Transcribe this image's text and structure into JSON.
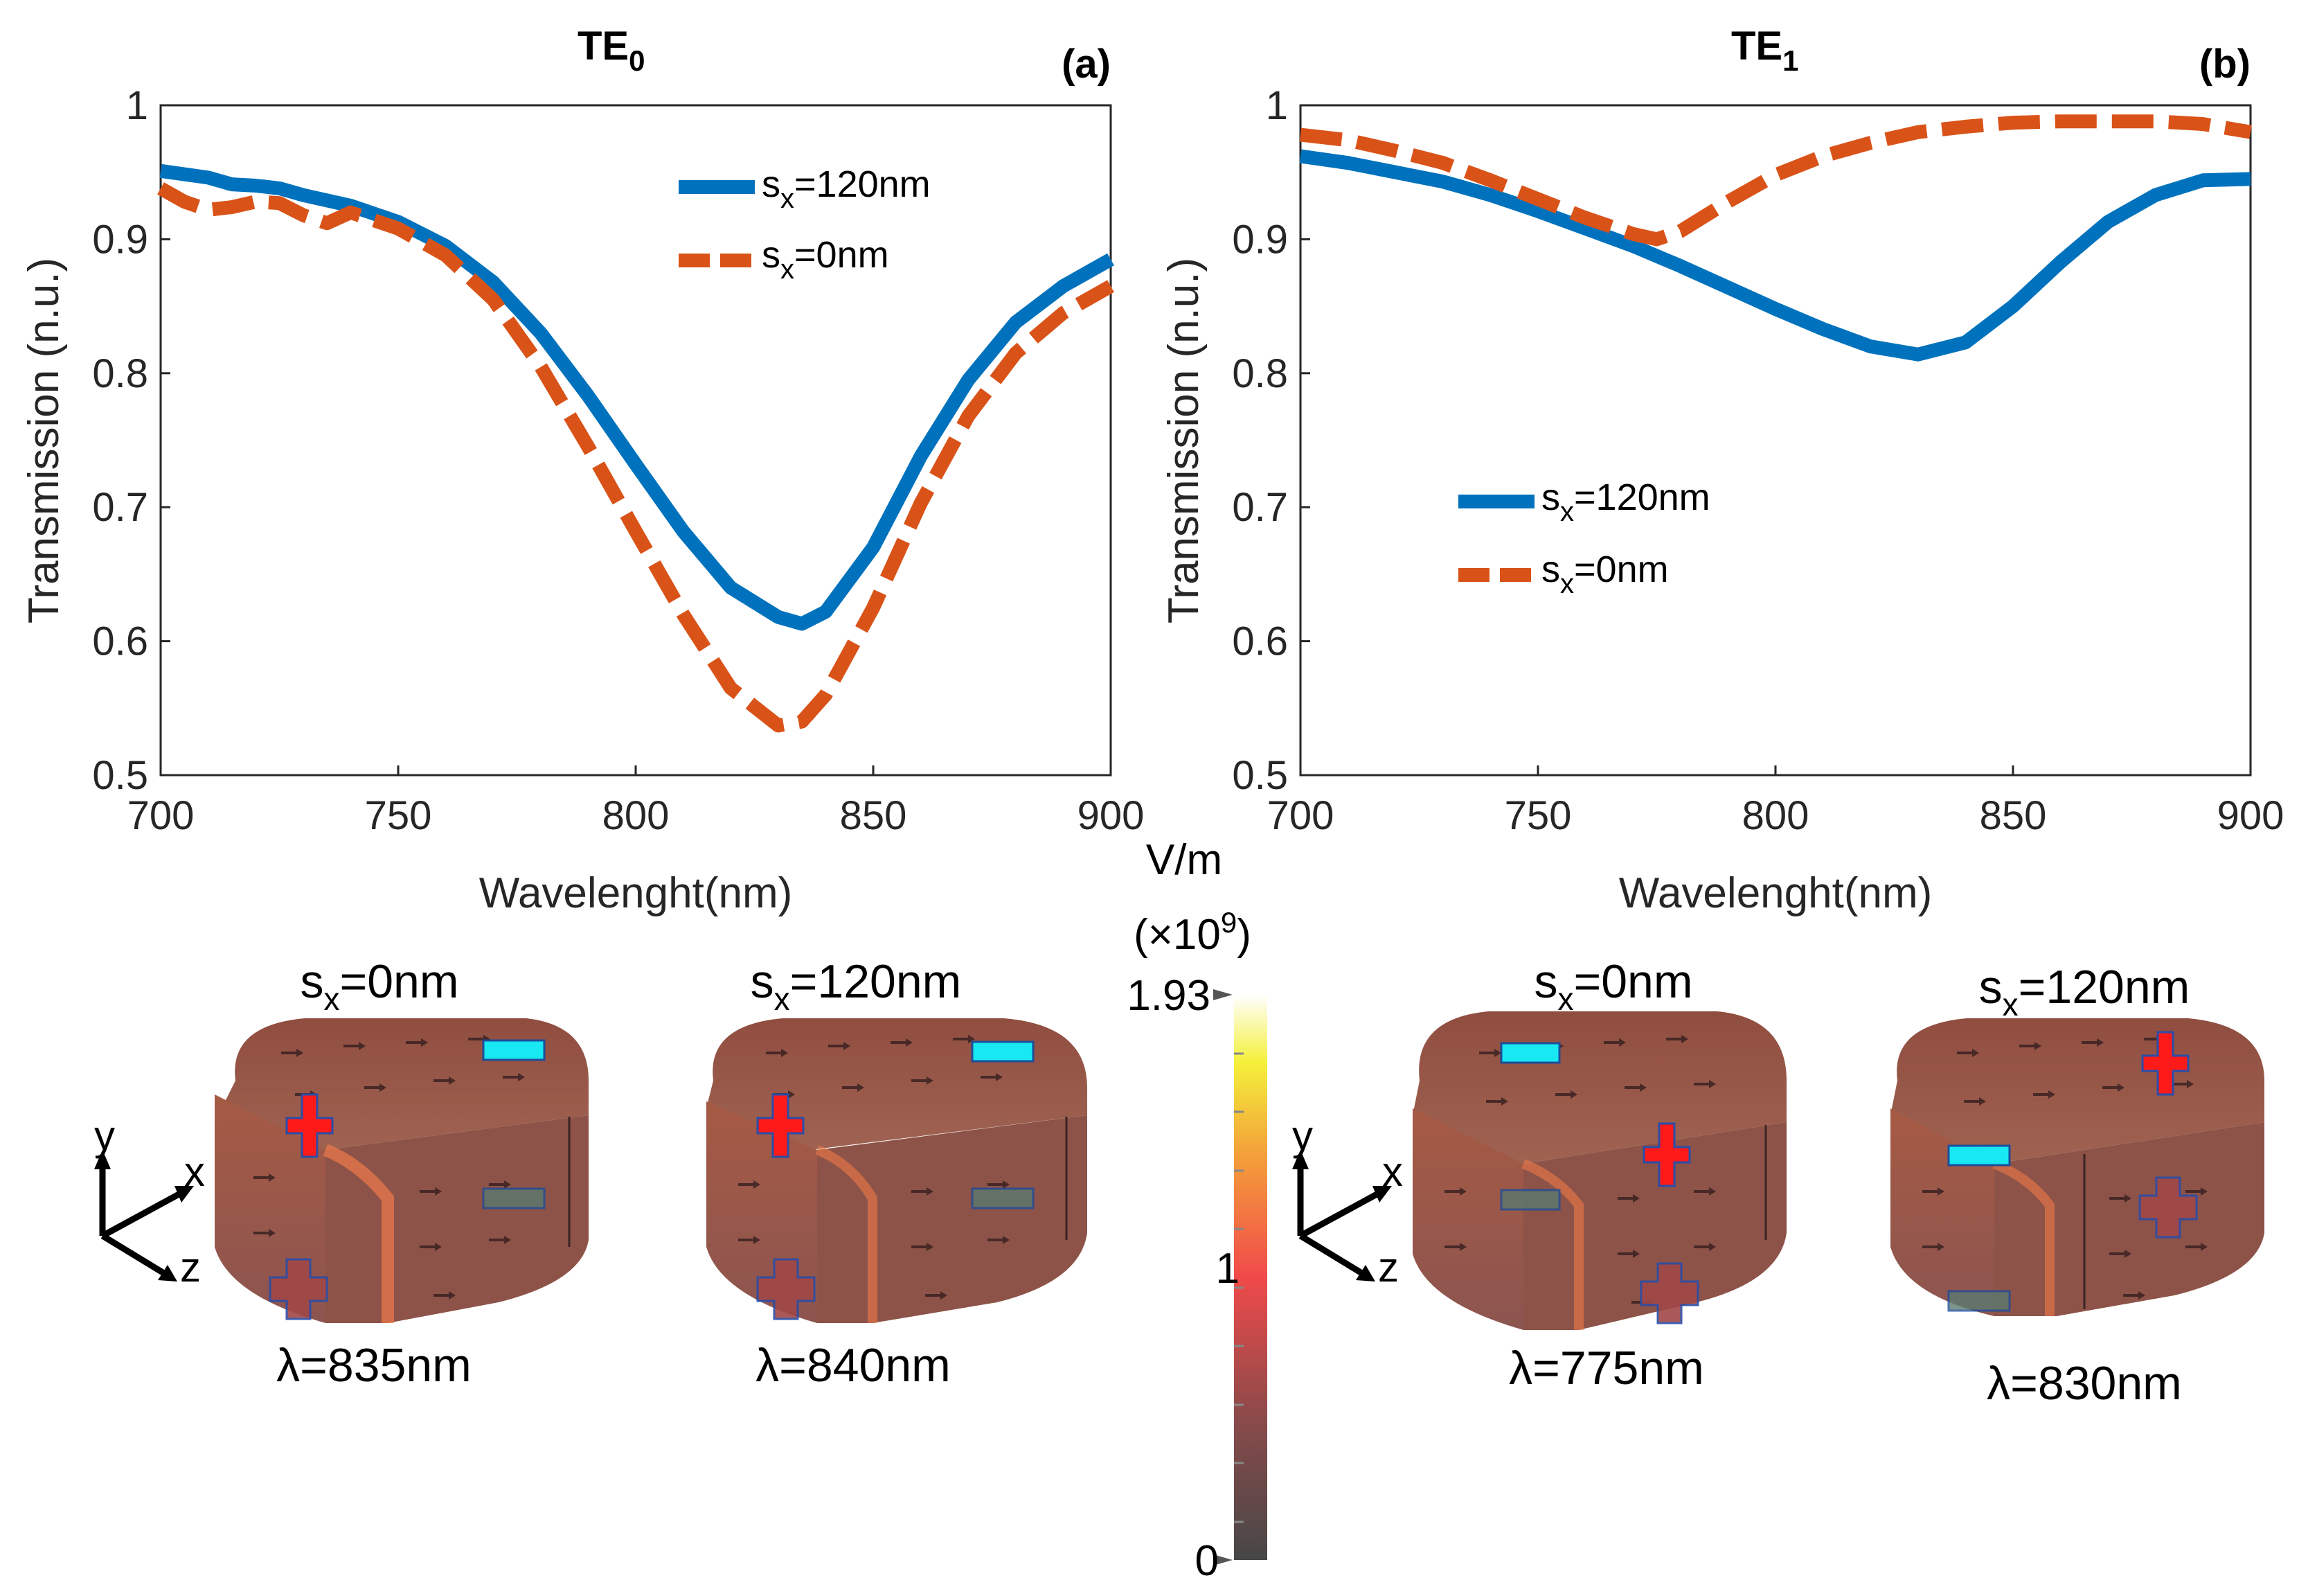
{
  "chart_data": [
    {
      "type": "line",
      "title": "TE",
      "title_subscript": "0",
      "panel_label": "(a)",
      "xlabel": "Wavelenght(nm)",
      "ylabel": "Transmission (n.u.)",
      "xlim": [
        700,
        900
      ],
      "ylim": [
        0.5,
        1
      ],
      "xticks": [
        700,
        750,
        800,
        850,
        900
      ],
      "yticks": [
        0.5,
        0.6,
        0.7,
        0.8,
        0.9,
        1
      ],
      "ytick_labels": [
        "0.5",
        "0.6",
        "0.7",
        "0.8",
        "0.9",
        "1"
      ],
      "legend_position": "top-right",
      "series": [
        {
          "name": "s",
          "sub": "x",
          "tail": "=120nm",
          "style": "solid",
          "color": "#0072BD",
          "x": [
            700,
            710,
            715,
            720,
            725,
            730,
            740,
            750,
            760,
            770,
            780,
            790,
            800,
            810,
            820,
            830,
            835,
            840,
            850,
            860,
            870,
            880,
            890,
            900
          ],
          "y": [
            0.951,
            0.946,
            0.941,
            0.94,
            0.938,
            0.933,
            0.925,
            0.913,
            0.895,
            0.868,
            0.83,
            0.783,
            0.732,
            0.682,
            0.64,
            0.618,
            0.613,
            0.622,
            0.67,
            0.738,
            0.795,
            0.838,
            0.865,
            0.885
          ]
        },
        {
          "name": "s",
          "sub": "x",
          "tail": "=0nm",
          "style": "dashed",
          "color": "#D95319",
          "x": [
            700,
            705,
            710,
            715,
            720,
            725,
            730,
            735,
            740,
            750,
            760,
            770,
            780,
            790,
            800,
            810,
            820,
            830,
            835,
            840,
            850,
            860,
            870,
            880,
            890,
            900
          ],
          "y": [
            0.938,
            0.928,
            0.922,
            0.924,
            0.928,
            0.927,
            0.918,
            0.912,
            0.92,
            0.908,
            0.888,
            0.855,
            0.805,
            0.745,
            0.682,
            0.62,
            0.565,
            0.537,
            0.54,
            0.56,
            0.625,
            0.703,
            0.768,
            0.815,
            0.845,
            0.865
          ]
        }
      ]
    },
    {
      "type": "line",
      "title": "TE",
      "title_subscript": "1",
      "panel_label": "(b)",
      "xlabel": "Wavelenght(nm)",
      "ylabel": "Transmission (n.u.)",
      "xlim": [
        700,
        900
      ],
      "ylim": [
        0.5,
        1
      ],
      "xticks": [
        700,
        750,
        800,
        850,
        900
      ],
      "yticks": [
        0.5,
        0.6,
        0.7,
        0.8,
        0.9,
        1
      ],
      "ytick_labels": [
        "0.5",
        "0.6",
        "0.7",
        "0.8",
        "0.9",
        "1"
      ],
      "legend_position": "center-left",
      "series": [
        {
          "name": "s",
          "sub": "x",
          "tail": "=120nm",
          "style": "solid",
          "color": "#0072BD",
          "x": [
            700,
            710,
            720,
            730,
            740,
            750,
            760,
            770,
            780,
            790,
            800,
            810,
            820,
            830,
            840,
            850,
            860,
            870,
            880,
            890,
            900
          ],
          "y": [
            0.962,
            0.957,
            0.95,
            0.943,
            0.933,
            0.921,
            0.908,
            0.895,
            0.88,
            0.864,
            0.848,
            0.833,
            0.82,
            0.814,
            0.823,
            0.85,
            0.883,
            0.913,
            0.933,
            0.944,
            0.945
          ]
        },
        {
          "name": "s",
          "sub": "x",
          "tail": "=0nm",
          "style": "dashed",
          "color": "#D95319",
          "x": [
            700,
            710,
            720,
            730,
            740,
            750,
            760,
            770,
            775,
            780,
            790,
            800,
            810,
            820,
            830,
            840,
            850,
            860,
            870,
            880,
            890,
            900
          ],
          "y": [
            0.978,
            0.974,
            0.966,
            0.957,
            0.944,
            0.93,
            0.916,
            0.904,
            0.9,
            0.906,
            0.928,
            0.948,
            0.962,
            0.972,
            0.98,
            0.984,
            0.987,
            0.988,
            0.988,
            0.988,
            0.986,
            0.98
          ]
        }
      ]
    }
  ],
  "colorbar": {
    "unit": "V/m",
    "scale": "(×10",
    "scale_exp": "9",
    "scale_close": ")",
    "max_label": "1.93",
    "mid_label": "1",
    "min_label": "0",
    "min": 0,
    "max": 1.93
  },
  "field_maps": [
    {
      "s": "s",
      "sub": "x",
      "tail": "=0nm",
      "caption": "λ=835nm"
    },
    {
      "s": "s",
      "sub": "x",
      "tail": "=120nm",
      "caption": "λ=840nm"
    },
    {
      "s": "s",
      "sub": "x",
      "tail": "=0nm",
      "caption": "λ=775nm"
    },
    {
      "s": "s",
      "sub": "x",
      "tail": "=120nm",
      "caption": "λ=830nm"
    }
  ],
  "axes_glyph": {
    "y": "y",
    "x": "x",
    "z": "z"
  },
  "colors": {
    "blue": "#0072BD",
    "orange": "#D95319",
    "plus": "#FF1A1A",
    "minus": "#18E8F2",
    "cube": "#8E4A3C"
  }
}
